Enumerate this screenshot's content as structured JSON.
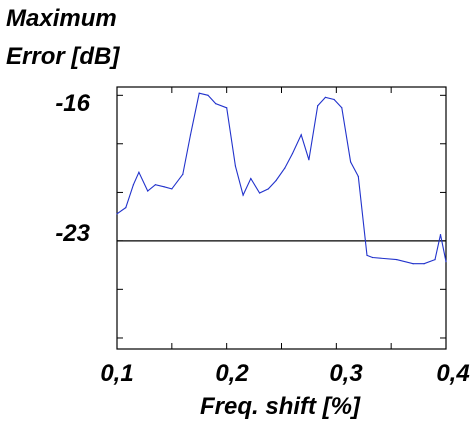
{
  "chart_data": {
    "type": "line",
    "ylabel_lines": [
      "Maximum",
      "Error [dB]"
    ],
    "xlabel": "Freq. shift [%]",
    "xlim": [
      0.1,
      0.4
    ],
    "ylim": [
      -28.2,
      -15.6
    ],
    "x_ticks": [
      0.1,
      0.15,
      0.2,
      0.25,
      0.3,
      0.35,
      0.4
    ],
    "x_tick_labels": [
      "0,1",
      "",
      "0,2",
      "",
      "0,3",
      "",
      "0,4"
    ],
    "y_ticks": [
      -16,
      -18.33,
      -20.67,
      -23,
      -25.33,
      -27.67
    ],
    "y_tick_labels": [
      "-16",
      "",
      "",
      "-23",
      "",
      ""
    ],
    "reference_line": {
      "y": -23,
      "color": "#000000"
    },
    "series": [
      {
        "color": "#2233cc",
        "x": [
          0.1,
          0.108,
          0.115,
          0.12,
          0.128,
          0.135,
          0.143,
          0.15,
          0.16,
          0.167,
          0.175,
          0.183,
          0.19,
          0.2,
          0.208,
          0.215,
          0.222,
          0.23,
          0.238,
          0.245,
          0.253,
          0.26,
          0.268,
          0.275,
          0.283,
          0.29,
          0.298,
          0.305,
          0.313,
          0.32,
          0.328,
          0.333,
          0.355,
          0.37,
          0.38,
          0.39,
          0.395,
          0.4
        ],
        "y": [
          -21.7,
          -21.4,
          -20.3,
          -19.7,
          -20.6,
          -20.3,
          -20.4,
          -20.5,
          -19.8,
          -17.9,
          -15.9,
          -16.0,
          -16.4,
          -16.6,
          -19.4,
          -20.8,
          -20.0,
          -20.7,
          -20.5,
          -20.1,
          -19.5,
          -18.8,
          -17.9,
          -19.1,
          -16.5,
          -16.1,
          -16.2,
          -16.6,
          -19.2,
          -19.9,
          -23.7,
          -23.8,
          -23.9,
          -24.1,
          -24.1,
          -23.9,
          -22.7,
          -24.0
        ]
      }
    ]
  }
}
